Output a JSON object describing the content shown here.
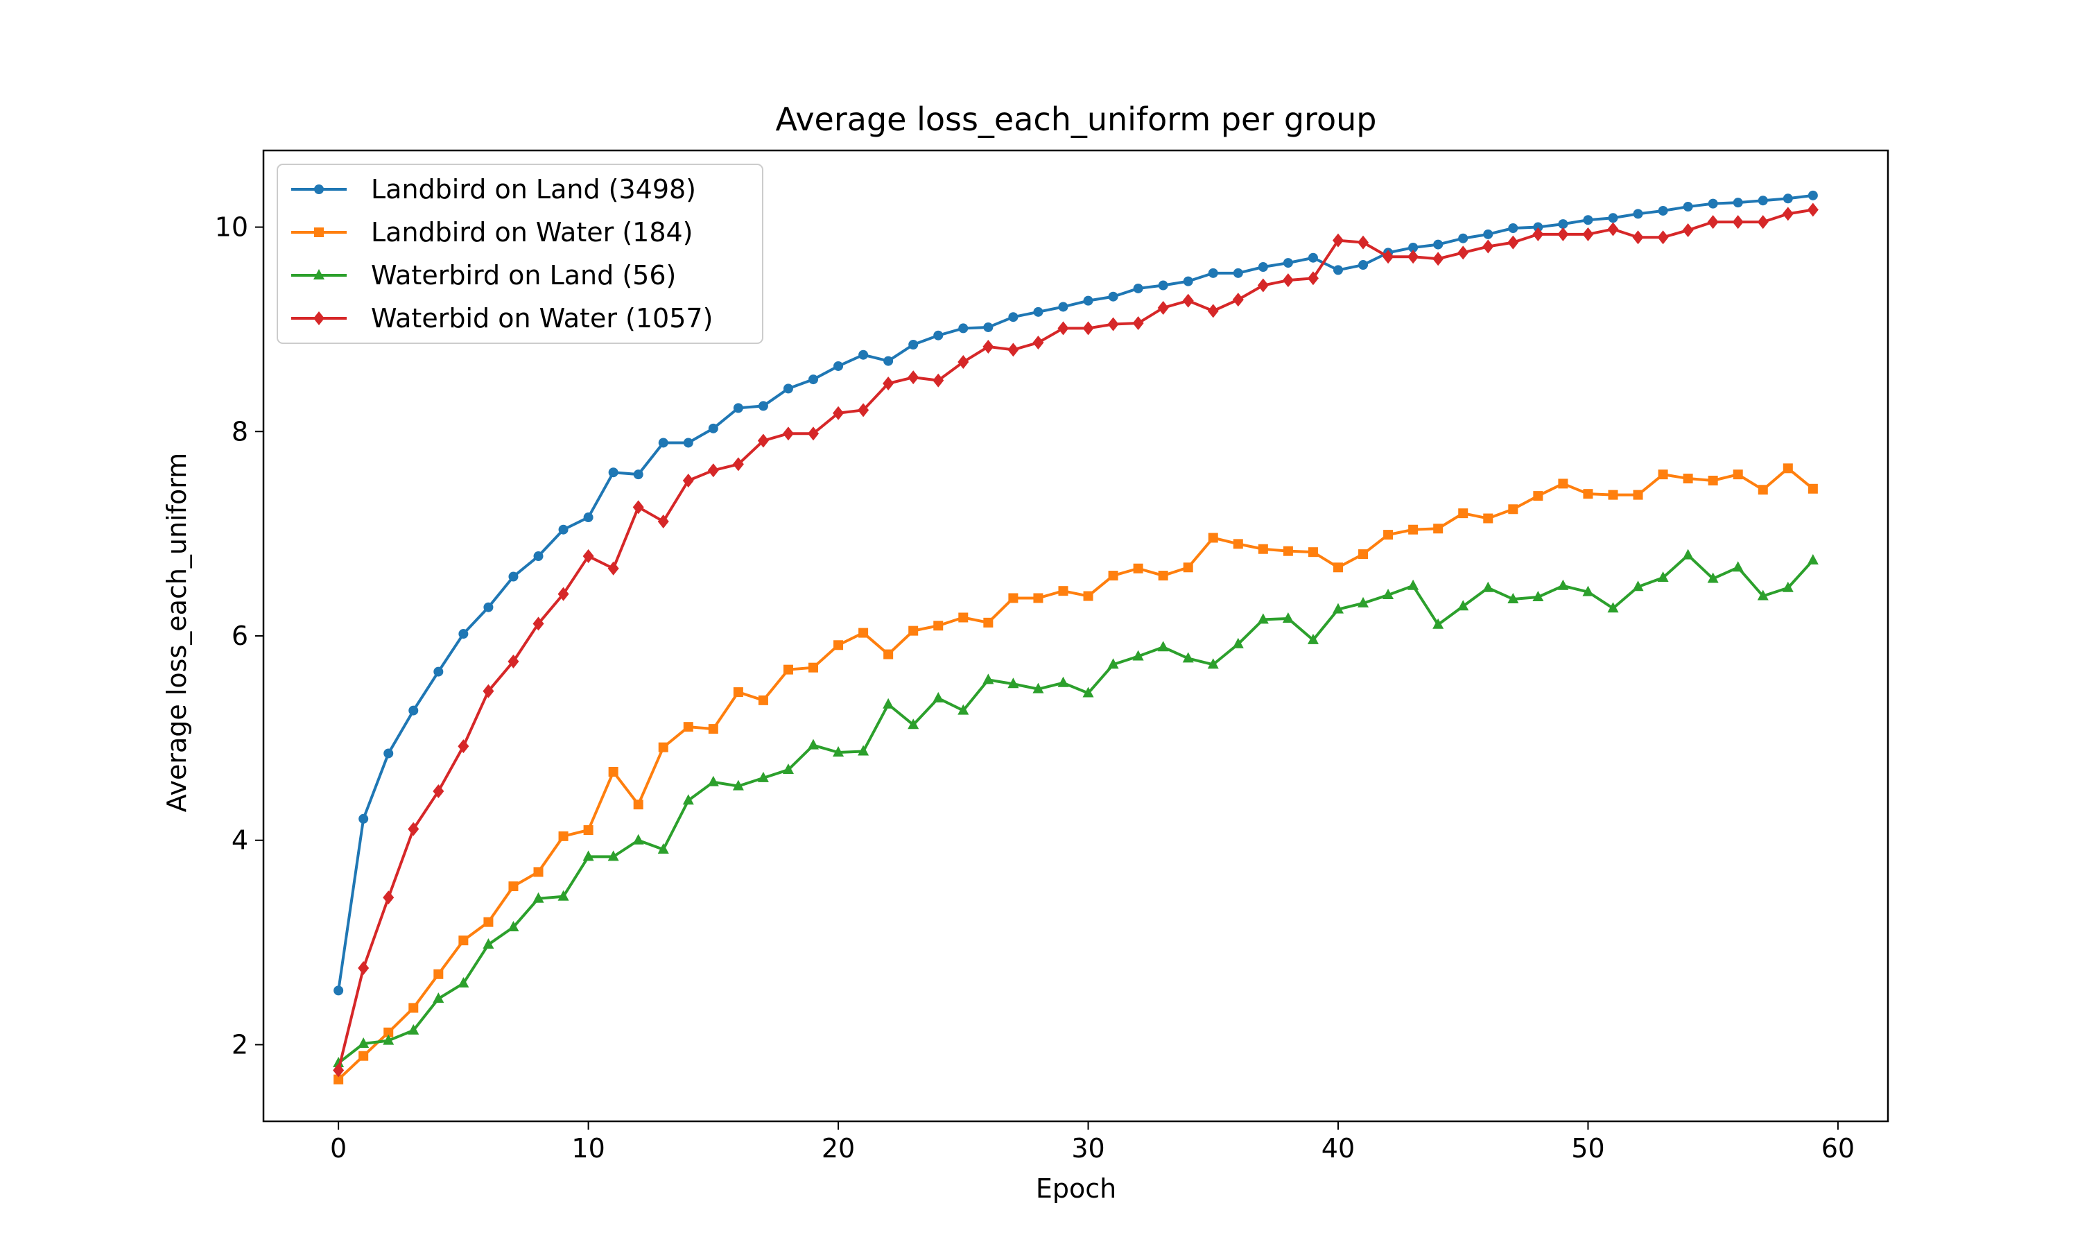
{
  "chart_data": {
    "type": "line",
    "title": "Average loss_each_uniform per group",
    "xlabel": "Epoch",
    "ylabel": "Average loss_each_uniform",
    "xlim": [
      -3,
      62
    ],
    "ylim": [
      1.25,
      10.75
    ],
    "xticks": [
      0,
      10,
      20,
      30,
      40,
      50,
      60
    ],
    "yticks": [
      2,
      4,
      6,
      8,
      10
    ],
    "grid": false,
    "legend_position": "upper-left",
    "x": [
      0,
      1,
      2,
      3,
      4,
      5,
      6,
      7,
      8,
      9,
      10,
      11,
      12,
      13,
      14,
      15,
      16,
      17,
      18,
      19,
      20,
      21,
      22,
      23,
      24,
      25,
      26,
      27,
      28,
      29,
      30,
      31,
      32,
      33,
      34,
      35,
      36,
      37,
      38,
      39,
      40,
      41,
      42,
      43,
      44,
      45,
      46,
      47,
      48,
      49,
      50,
      51,
      52,
      53,
      54,
      55,
      56,
      57,
      58,
      59
    ],
    "series": [
      {
        "name": "Landbird on Land (3498)",
        "color": "#1f77b4",
        "marker": "circle",
        "values": [
          2.53,
          4.21,
          4.85,
          5.27,
          5.65,
          6.02,
          6.28,
          6.58,
          6.78,
          7.04,
          7.16,
          7.6,
          7.58,
          7.89,
          7.89,
          8.03,
          8.23,
          8.25,
          8.42,
          8.51,
          8.64,
          8.75,
          8.69,
          8.85,
          8.94,
          9.01,
          9.02,
          9.12,
          9.17,
          9.22,
          9.28,
          9.32,
          9.4,
          9.43,
          9.47,
          9.55,
          9.55,
          9.61,
          9.65,
          9.7,
          9.58,
          9.63,
          9.75,
          9.8,
          9.83,
          9.89,
          9.93,
          9.99,
          10.0,
          10.03,
          10.07,
          10.09,
          10.13,
          10.16,
          10.2,
          10.23,
          10.24,
          10.26,
          10.28,
          10.31
        ]
      },
      {
        "name": "Landbird on Water (184)",
        "color": "#ff7f0e",
        "marker": "square",
        "values": [
          1.66,
          1.89,
          2.12,
          2.36,
          2.69,
          3.02,
          3.2,
          3.55,
          3.69,
          4.04,
          4.1,
          4.67,
          4.35,
          4.91,
          5.11,
          5.09,
          5.45,
          5.37,
          5.67,
          5.69,
          5.91,
          6.03,
          5.82,
          6.05,
          6.1,
          6.18,
          6.13,
          6.37,
          6.37,
          6.44,
          6.39,
          6.59,
          6.66,
          6.59,
          6.67,
          6.96,
          6.9,
          6.85,
          6.83,
          6.82,
          6.67,
          6.8,
          6.99,
          7.04,
          7.05,
          7.2,
          7.15,
          7.24,
          7.37,
          7.49,
          7.39,
          7.38,
          7.38,
          7.58,
          7.54,
          7.52,
          7.58,
          7.43,
          7.64,
          7.44
        ]
      },
      {
        "name": "Waterbird on Land (56)",
        "color": "#2ca02c",
        "marker": "triangle",
        "values": [
          1.82,
          2.01,
          2.04,
          2.14,
          2.45,
          2.6,
          2.98,
          3.15,
          3.43,
          3.45,
          3.84,
          3.84,
          4.0,
          3.91,
          4.39,
          4.57,
          4.53,
          4.61,
          4.69,
          4.93,
          4.86,
          4.87,
          5.33,
          5.13,
          5.39,
          5.27,
          5.57,
          5.53,
          5.48,
          5.54,
          5.44,
          5.72,
          5.8,
          5.89,
          5.78,
          5.72,
          5.92,
          6.16,
          6.17,
          5.96,
          6.26,
          6.32,
          6.4,
          6.49,
          6.11,
          6.29,
          6.47,
          6.36,
          6.38,
          6.49,
          6.43,
          6.27,
          6.48,
          6.57,
          6.79,
          6.56,
          6.67,
          6.39,
          6.47,
          6.74
        ]
      },
      {
        "name": "Waterbid on Water (1057)",
        "color": "#d62728",
        "marker": "diamond",
        "values": [
          1.75,
          2.75,
          3.44,
          4.11,
          4.48,
          4.92,
          5.46,
          5.75,
          6.12,
          6.41,
          6.78,
          6.66,
          7.26,
          7.12,
          7.52,
          7.62,
          7.68,
          7.91,
          7.98,
          7.98,
          8.18,
          8.21,
          8.47,
          8.53,
          8.5,
          8.68,
          8.83,
          8.8,
          8.87,
          9.01,
          9.01,
          9.05,
          9.06,
          9.21,
          9.28,
          9.18,
          9.29,
          9.43,
          9.48,
          9.5,
          9.87,
          9.85,
          9.71,
          9.71,
          9.69,
          9.75,
          9.81,
          9.85,
          9.93,
          9.93,
          9.93,
          9.98,
          9.9,
          9.9,
          9.97,
          10.05,
          10.05,
          10.05,
          10.13,
          10.17
        ]
      }
    ]
  }
}
